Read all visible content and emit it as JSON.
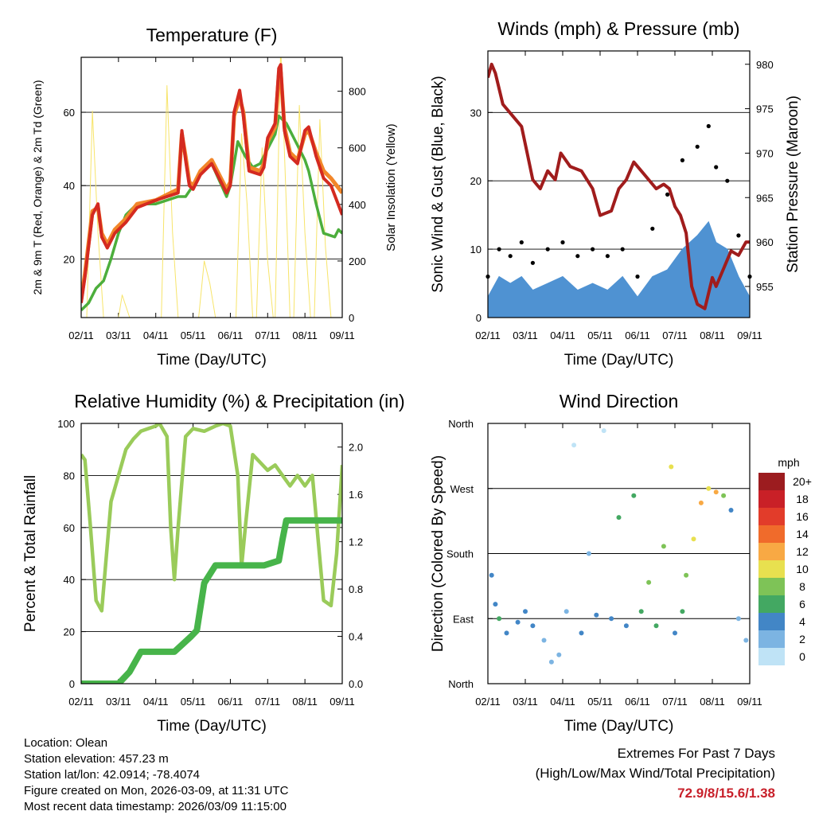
{
  "colors": {
    "temp_2m": "#d42a20",
    "temp_9m": "#f2862a",
    "dewpoint": "#4cae3c",
    "solar": "#f7e46a",
    "wind": "#4f92d2",
    "gust": "#000000",
    "pressure": "#a01c1c",
    "rh": "#9acb5a",
    "precip": "#47b44a",
    "extremes": "#c8202a"
  },
  "chart_data": [
    {
      "type": "line",
      "title": "Temperature (F)",
      "xlabel": "Time (Day/UTC)",
      "ylabel": "2m & 9m T (Red, Orange) & 2m Td (Green)",
      "y2label": "Solar Insolation (Yellow)",
      "xticks": [
        "02/11",
        "03/11",
        "04/11",
        "05/11",
        "06/11",
        "07/11",
        "08/11",
        "09/11"
      ],
      "xlim": [
        0,
        7
      ],
      "ylim": [
        4,
        75
      ],
      "yticks": [
        20,
        40,
        60
      ],
      "y2lim": [
        0,
        920
      ],
      "y2ticks": [
        0,
        200,
        400,
        600,
        800
      ],
      "series": [
        {
          "name": "2m T",
          "color_key": "temp_2m",
          "x": [
            0,
            0.1,
            0.3,
            0.45,
            0.55,
            0.7,
            0.9,
            1.2,
            1.5,
            2.0,
            2.6,
            2.7,
            2.8,
            2.9,
            3.0,
            3.2,
            3.5,
            3.9,
            4.0,
            4.1,
            4.25,
            4.35,
            4.5,
            4.8,
            4.9,
            5.0,
            5.2,
            5.3,
            5.35,
            5.45,
            5.6,
            5.8,
            6.0,
            6.1,
            6.3,
            6.5,
            6.7,
            6.85,
            7.0
          ],
          "y": [
            8,
            15,
            32,
            35,
            26,
            23,
            27,
            30,
            34,
            36,
            38,
            55,
            47,
            40,
            39,
            43,
            46,
            38,
            40,
            60,
            66,
            59,
            44,
            43,
            45,
            53,
            57,
            72,
            73,
            55,
            48,
            46,
            55,
            56,
            48,
            42,
            40,
            36,
            32
          ]
        },
        {
          "name": "9m T",
          "color_key": "temp_9m",
          "x": [
            0,
            0.1,
            0.3,
            0.45,
            0.55,
            0.7,
            0.9,
            1.2,
            1.5,
            2.0,
            2.6,
            2.7,
            2.8,
            2.9,
            3.0,
            3.2,
            3.5,
            3.9,
            4.0,
            4.1,
            4.25,
            4.35,
            4.5,
            4.8,
            4.9,
            5.0,
            5.2,
            5.3,
            5.35,
            5.45,
            5.6,
            5.8,
            6.0,
            6.1,
            6.3,
            6.5,
            6.7,
            6.85,
            7.0
          ],
          "y": [
            9,
            16,
            33,
            34,
            27,
            24,
            28,
            31,
            35,
            36,
            39,
            54,
            48,
            41,
            40,
            44,
            47,
            39,
            41,
            59,
            64,
            60,
            45,
            44,
            46,
            52,
            56,
            70,
            71,
            56,
            49,
            47,
            54,
            55,
            49,
            44,
            42,
            40,
            38
          ]
        },
        {
          "name": "2m Td",
          "color_key": "dewpoint",
          "x": [
            0,
            0.2,
            0.4,
            0.6,
            0.8,
            1.0,
            1.2,
            1.5,
            2.0,
            2.3,
            2.6,
            2.8,
            3.0,
            3.2,
            3.5,
            3.9,
            4.0,
            4.2,
            4.4,
            4.6,
            4.8,
            5.0,
            5.2,
            5.3,
            5.5,
            5.6,
            5.8,
            6.0,
            6.1,
            6.3,
            6.5,
            6.8,
            6.9,
            7.0
          ],
          "y": [
            6,
            8,
            12,
            14,
            20,
            27,
            32,
            35,
            35,
            36,
            37,
            37,
            40,
            44,
            46,
            37,
            40,
            52,
            48,
            45,
            46,
            50,
            54,
            59,
            57,
            55,
            51,
            47,
            44,
            35,
            27,
            26,
            28,
            27
          ]
        },
        {
          "name": "Solar Insolation",
          "color_key": "solar",
          "axis": "y2",
          "x": [
            0,
            0.15,
            0.3,
            0.45,
            0.6,
            1.0,
            1.1,
            1.2,
            1.3,
            2.15,
            2.3,
            2.45,
            2.6,
            3.15,
            3.3,
            3.45,
            3.6,
            4.15,
            4.3,
            4.45,
            4.6,
            4.7,
            4.85,
            5.0,
            5.15,
            5.2,
            5.35,
            5.5,
            5.6,
            5.7,
            5.85,
            6.0,
            6.15,
            6.25,
            6.4,
            6.55,
            6.7,
            7.0
          ],
          "y": [
            0,
            0,
            730,
            300,
            0,
            0,
            80,
            40,
            0,
            0,
            820,
            300,
            0,
            0,
            200,
            120,
            0,
            0,
            650,
            400,
            0,
            0,
            600,
            200,
            0,
            0,
            960,
            400,
            0,
            0,
            750,
            300,
            0,
            0,
            700,
            250,
            0,
            0
          ]
        }
      ]
    },
    {
      "type": "scatter",
      "title": "Winds (mph) & Pressure (mb)",
      "xlabel": "Time (Day/UTC)",
      "ylabel": "Sonic Wind & Gust (Blue, Black)",
      "y2label": "Station Pressure (Maroon)",
      "xticks": [
        "02/11",
        "03/11",
        "04/11",
        "05/11",
        "06/11",
        "07/11",
        "08/11",
        "09/11"
      ],
      "xlim": [
        0,
        7
      ],
      "ylim": [
        0,
        39
      ],
      "yticks": [
        0,
        10,
        20,
        30
      ],
      "y2lim": [
        951.5,
        981.5
      ],
      "y2ticks": [
        955,
        960,
        965,
        970,
        975,
        980
      ],
      "series": [
        {
          "name": "Wind",
          "color_key": "wind",
          "kind": "area",
          "x": [
            0,
            0.3,
            0.6,
            0.9,
            1.2,
            1.6,
            2.0,
            2.4,
            2.8,
            3.2,
            3.6,
            4.0,
            4.4,
            4.8,
            5.2,
            5.6,
            5.9,
            6.1,
            6.4,
            6.7,
            7.0
          ],
          "y": [
            3,
            6,
            5,
            6,
            4,
            5,
            6,
            4,
            5,
            4,
            6,
            3,
            6,
            7,
            10,
            12,
            14,
            11,
            10,
            6,
            3
          ]
        },
        {
          "name": "Gust",
          "color_key": "gust",
          "kind": "points",
          "x": [
            0,
            0.3,
            0.6,
            0.9,
            1.2,
            1.6,
            2.0,
            2.4,
            2.8,
            3.2,
            3.6,
            4.0,
            4.4,
            4.8,
            5.2,
            5.6,
            5.9,
            6.1,
            6.4,
            6.7,
            7.0
          ],
          "y": [
            6,
            10,
            9,
            11,
            8,
            10,
            11,
            9,
            10,
            9,
            10,
            6,
            13,
            18,
            23,
            25,
            28,
            22,
            20,
            12,
            6
          ]
        },
        {
          "name": "Station Pressure",
          "color_key": "pressure",
          "axis": "y2",
          "kind": "line",
          "x": [
            0,
            0.1,
            0.2,
            0.4,
            0.6,
            0.9,
            1.05,
            1.2,
            1.4,
            1.6,
            1.8,
            1.95,
            2.2,
            2.5,
            2.8,
            3.0,
            3.3,
            3.5,
            3.7,
            3.9,
            4.1,
            4.3,
            4.5,
            4.7,
            4.85,
            5.0,
            5.15,
            5.3,
            5.45,
            5.6,
            5.8,
            6.0,
            6.1,
            6.3,
            6.5,
            6.7,
            6.9,
            7.0
          ],
          "y": [
            978.5,
            980,
            979,
            975.5,
            974.5,
            973,
            970,
            967,
            966,
            968,
            967,
            970,
            968.5,
            968,
            966,
            963,
            963.5,
            966,
            967,
            969,
            968,
            967,
            966,
            966.5,
            966,
            964,
            963,
            961,
            955,
            953,
            952.5,
            956,
            955,
            957,
            959,
            958.5,
            960,
            960
          ]
        }
      ]
    },
    {
      "type": "line",
      "title": "Relative Humidity (%) & Precipitation (in)",
      "xlabel": "Time (Day/UTC)",
      "ylabel": "Percent & Total Rainfall",
      "xticks": [
        "02/11",
        "03/11",
        "04/11",
        "05/11",
        "06/11",
        "07/11",
        "08/11",
        "09/11"
      ],
      "xlim": [
        0,
        7
      ],
      "ylim": [
        0,
        100
      ],
      "yticks": [
        0,
        20,
        40,
        60,
        80,
        100
      ],
      "y2lim": [
        0,
        2.2
      ],
      "y2ticks": [
        "0.0",
        "0.4",
        "0.8",
        "1.2",
        "1.6",
        "2.0"
      ],
      "series": [
        {
          "name": "Relative Humidity",
          "color_key": "rh",
          "x": [
            0,
            0.1,
            0.25,
            0.4,
            0.55,
            0.65,
            0.8,
            1.0,
            1.2,
            1.4,
            1.6,
            1.8,
            2.0,
            2.1,
            2.3,
            2.4,
            2.5,
            2.6,
            2.8,
            3.0,
            3.3,
            3.6,
            3.8,
            4.0,
            4.2,
            4.3,
            4.4,
            4.6,
            4.8,
            5.0,
            5.2,
            5.4,
            5.6,
            5.8,
            6.0,
            6.2,
            6.35,
            6.5,
            6.7,
            6.85,
            7.0
          ],
          "y": [
            88,
            86,
            60,
            32,
            28,
            45,
            70,
            80,
            90,
            94,
            97,
            98,
            99,
            100,
            95,
            60,
            40,
            60,
            95,
            98,
            97,
            99,
            100,
            99,
            80,
            45,
            60,
            88,
            85,
            82,
            84,
            80,
            76,
            80,
            76,
            80,
            56,
            32,
            30,
            50,
            84
          ]
        },
        {
          "name": "Total Precipitation",
          "color_key": "precip",
          "axis": "y2",
          "x": [
            0,
            1.0,
            1.3,
            1.6,
            2.5,
            2.95,
            3.1,
            3.3,
            3.6,
            4.2,
            4.9,
            5.3,
            5.4,
            5.5,
            7.0
          ],
          "y": [
            0,
            0,
            0.1,
            0.27,
            0.27,
            0.4,
            0.45,
            0.85,
            1.0,
            1.0,
            1.0,
            1.04,
            1.22,
            1.38,
            1.38
          ]
        }
      ]
    },
    {
      "type": "scatter",
      "title": "Wind Direction",
      "xlabel": "Time (Day/UTC)",
      "ylabel": "Direction (Colored By Speed)",
      "xticks": [
        "02/11",
        "03/11",
        "04/11",
        "05/11",
        "06/11",
        "07/11",
        "08/11",
        "09/11"
      ],
      "xlim": [
        0,
        7
      ],
      "ylim": [
        0,
        360
      ],
      "yticks": [
        "North",
        "East",
        "South",
        "West",
        "North"
      ],
      "legend_title": "mph",
      "legend_levels": [
        "20+",
        "18",
        "16",
        "14",
        "12",
        "10",
        "8",
        "6",
        "4",
        "2",
        "0"
      ],
      "legend_colors": [
        "#9c1c1f",
        "#c92027",
        "#e23c2a",
        "#f06b2b",
        "#f8a944",
        "#e8e04f",
        "#7ec357",
        "#43a862",
        "#4286c6",
        "#7cb4e2",
        "#bfe3f6"
      ],
      "series": [
        {
          "name": "Direction",
          "x": [
            0.1,
            0.2,
            0.3,
            0.5,
            0.8,
            1.0,
            1.2,
            1.5,
            1.7,
            1.9,
            2.1,
            2.3,
            2.5,
            2.7,
            2.9,
            3.1,
            3.3,
            3.5,
            3.7,
            3.9,
            4.1,
            4.3,
            4.5,
            4.7,
            4.9,
            5.0,
            5.2,
            5.3,
            5.5,
            5.7,
            5.9,
            6.1,
            6.3,
            6.5,
            6.7,
            6.9
          ],
          "y": [
            150,
            110,
            90,
            70,
            85,
            100,
            80,
            60,
            30,
            40,
            100,
            330,
            70,
            180,
            95,
            350,
            90,
            230,
            80,
            260,
            100,
            140,
            80,
            190,
            300,
            70,
            100,
            150,
            200,
            250,
            270,
            265,
            260,
            240,
            90,
            60
          ],
          "speed": [
            4,
            4,
            6,
            4,
            4,
            4,
            4,
            2,
            2,
            2,
            2,
            0,
            4,
            2,
            4,
            0,
            4,
            6,
            4,
            6,
            6,
            8,
            6,
            8,
            10,
            4,
            6,
            8,
            10,
            12,
            10,
            12,
            8,
            4,
            2,
            2
          ]
        }
      ]
    }
  ],
  "footer": {
    "location": "Location: Olean",
    "elevation": "Station elevation: 457.23 m",
    "latlon": "Station lat/lon: 42.0914; -78.4074",
    "created": "Figure created on Mon, 2026-03-09, at 11:31 UTC",
    "latest": "Most recent data timestamp: 2026/03/09 11:15:00",
    "extremes_title": "Extremes For Past 7 Days",
    "extremes_sub": "(High/Low/Max Wind/Total Precipitation)",
    "extremes_values": "72.9/8/15.6/1.38"
  }
}
